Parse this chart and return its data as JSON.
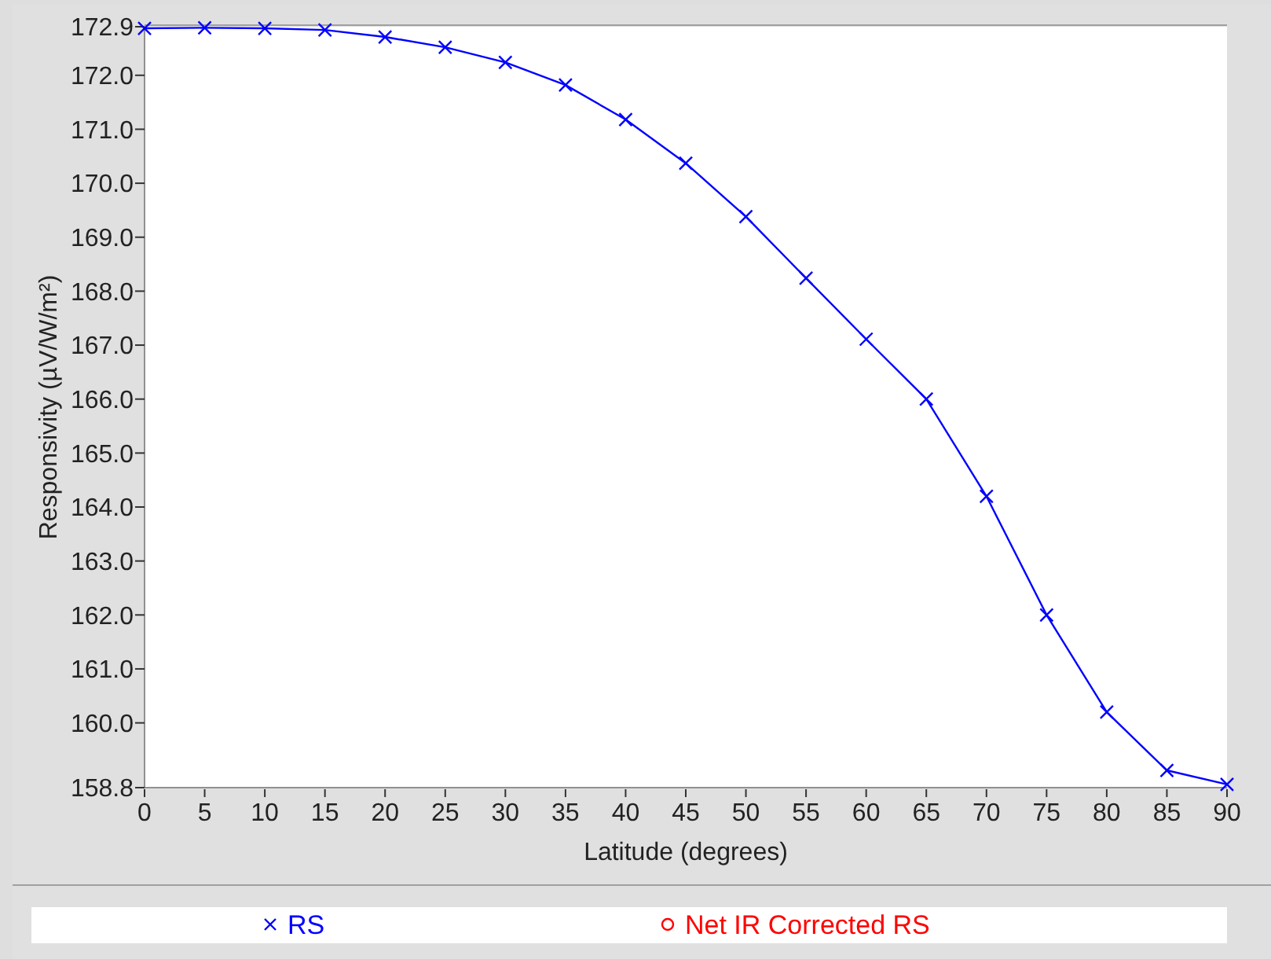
{
  "chart_data": {
    "type": "line",
    "xlabel": "Latitude (degrees)",
    "ylabel": "Responsivity (µV/W/m²)",
    "x": [
      0,
      5,
      10,
      15,
      20,
      25,
      30,
      35,
      40,
      45,
      50,
      55,
      60,
      65,
      70,
      75,
      80,
      85,
      90
    ],
    "series": [
      {
        "name": "RS",
        "color": "#0000ff",
        "marker": "cross",
        "values": [
          172.87,
          172.88,
          172.87,
          172.84,
          172.71,
          172.52,
          172.24,
          171.82,
          171.18,
          170.37,
          169.38,
          168.24,
          167.11,
          166.0,
          164.2,
          162.0,
          160.2,
          159.12,
          158.86
        ]
      },
      {
        "name": "Net IR Corrected RS",
        "color": "#ff0000",
        "marker": "circle",
        "values": [
          null,
          null,
          null,
          null,
          null,
          null,
          null,
          null,
          null,
          null,
          null,
          null,
          null,
          null,
          null,
          null,
          null,
          null,
          null
        ]
      }
    ],
    "xlim": [
      0,
      90
    ],
    "xticks": [
      0,
      5,
      10,
      15,
      20,
      25,
      30,
      35,
      40,
      45,
      50,
      55,
      60,
      65,
      70,
      75,
      80,
      85,
      90
    ],
    "ylim": [
      158.8,
      172.9
    ],
    "yticks": [
      158.8,
      {
        "value": 160,
        "label": "160.0"
      },
      {
        "value": 161,
        "label": "161.0"
      },
      {
        "value": 162,
        "label": "162.0"
      },
      {
        "value": 163,
        "label": "163.0"
      },
      {
        "value": 164,
        "label": "164.0"
      },
      {
        "value": 165,
        "label": "165.0"
      },
      {
        "value": 166,
        "label": "166.0"
      },
      {
        "value": 167,
        "label": "167.0"
      },
      {
        "value": 168,
        "label": "168.0"
      },
      {
        "value": 169,
        "label": "169.0"
      },
      {
        "value": 170,
        "label": "170.0"
      },
      {
        "value": 171,
        "label": "171.0"
      },
      {
        "value": 172,
        "label": "172.0"
      },
      172.9
    ],
    "grid": false,
    "legend": "bottom",
    "line_style": "solid"
  }
}
